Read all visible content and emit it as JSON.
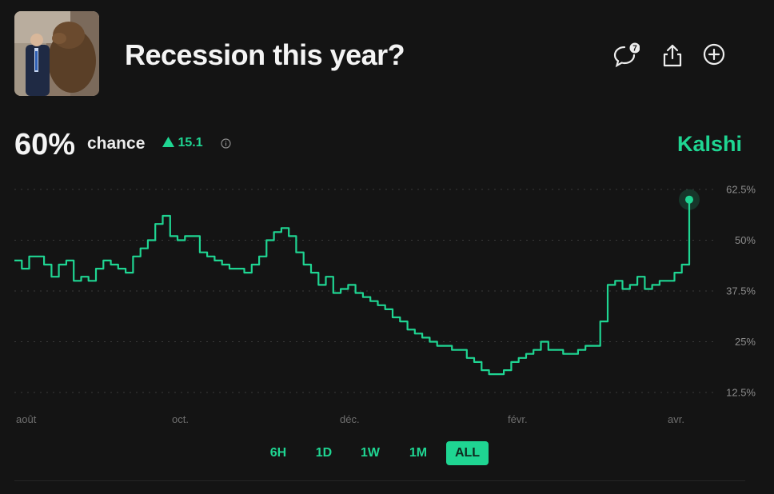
{
  "header": {
    "title": "Recession this year?",
    "comment_count": "7"
  },
  "summary": {
    "probability": "60%",
    "chance_label": "chance",
    "delta": "15.1",
    "brand": "Kalshi"
  },
  "colors": {
    "accent": "#1fd592",
    "background": "#141414",
    "grid": "#3a3a3a"
  },
  "icons": [
    "comment-icon",
    "share-icon",
    "add-circle-icon",
    "info-icon",
    "triangle-up-icon"
  ],
  "range_buttons": [
    "6H",
    "1D",
    "1W",
    "1M",
    "ALL"
  ],
  "active_range": "ALL",
  "chart_data": {
    "type": "line",
    "y_ticks": [
      "62.5%",
      "50%",
      "37.5%",
      "25%",
      "12.5%"
    ],
    "x_ticks": [
      "août",
      "oct.",
      "déc.",
      "févr.",
      "avr."
    ],
    "ylim": [
      12.5,
      62.5
    ],
    "grid": true,
    "series": [
      {
        "values": [
          45,
          43,
          46,
          46,
          44,
          41,
          44,
          45,
          40,
          41,
          40,
          43,
          45,
          44,
          43,
          42,
          46,
          48,
          50,
          54,
          56,
          51,
          50,
          51,
          51,
          47,
          46,
          45,
          44,
          43,
          43,
          42,
          44,
          46,
          50,
          52,
          53,
          51,
          47,
          44,
          42,
          39,
          41,
          37,
          38,
          39,
          37,
          36,
          35,
          34,
          33,
          31,
          30,
          28,
          27,
          26,
          25,
          24,
          24,
          23,
          23,
          21,
          20,
          18,
          17,
          17,
          18,
          20,
          21,
          22,
          23,
          25,
          23,
          23,
          22,
          22,
          23,
          24,
          24,
          30,
          39,
          40,
          38,
          39,
          41,
          38,
          39,
          40,
          40,
          42,
          44,
          60
        ]
      }
    ]
  }
}
